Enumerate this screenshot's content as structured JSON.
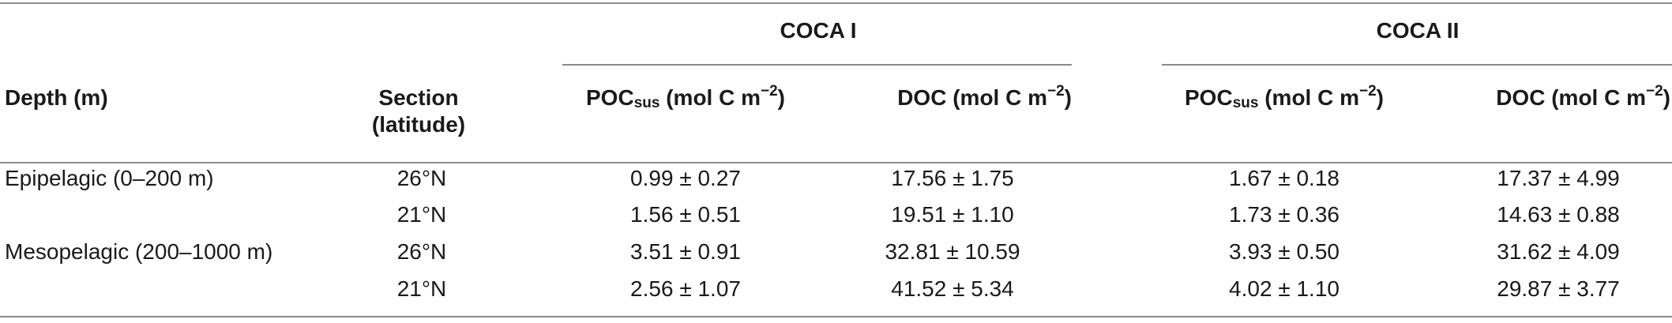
{
  "table": {
    "group_headers": [
      "COCA I",
      "COCA II"
    ],
    "col_depth": "Depth (m)",
    "col_section_line1": "Section",
    "col_section_line2": "(latitude)",
    "sub_headers": [
      {
        "base": "POC",
        "sub": "sus",
        "unit": " (mol C m",
        "sup": "−2",
        "close": ")"
      },
      {
        "base": "DOC",
        "sub": "",
        "unit": " (mol C m",
        "sup": "−2",
        "close": ")"
      },
      {
        "base": "POC",
        "sub": "sus",
        "unit": " (mol C m",
        "sup": "−2",
        "close": ")"
      },
      {
        "base": "DOC",
        "sub": "",
        "unit": " (mol C m",
        "sup": "−2",
        "close": ")"
      }
    ],
    "rows": [
      {
        "depth": "Epipelagic (0–200 m)",
        "section": "26°N",
        "coca1_poc": "0.99 ± 0.27",
        "coca1_doc": "17.56 ± 1.75",
        "coca2_poc": "1.67 ± 0.18",
        "coca2_doc": "17.37 ± 4.99"
      },
      {
        "depth": "",
        "section": "21°N",
        "coca1_poc": "1.56 ± 0.51",
        "coca1_doc": "19.51 ± 1.10",
        "coca2_poc": "1.73 ± 0.36",
        "coca2_doc": "14.63 ± 0.88"
      },
      {
        "depth": "Mesopelagic (200–1000 m)",
        "section": "26°N",
        "coca1_poc": "3.51 ± 0.91",
        "coca1_doc": "32.81 ± 10.59",
        "coca2_poc": "3.93 ± 0.50",
        "coca2_doc": "31.62 ± 4.09"
      },
      {
        "depth": "",
        "section": "21°N",
        "coca1_poc": "2.56 ± 1.07",
        "coca1_doc": "41.52 ± 5.34",
        "coca2_poc": "4.02 ± 1.10",
        "coca2_doc": "29.87 ± 3.77"
      }
    ]
  }
}
